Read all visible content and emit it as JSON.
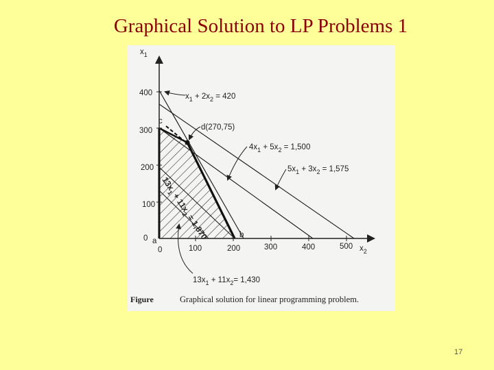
{
  "slide": {
    "title": "Graphical Solution to LP Problems 1",
    "page_number": "17"
  },
  "figure": {
    "caption_label": "Figure",
    "caption_text": "Graphical solution for linear programming problem.",
    "y_axis_var": "x",
    "y_axis_sub": "1",
    "x_axis_var": "x",
    "x_axis_sub": "2",
    "y_ticks": [
      "400",
      "300",
      "200",
      "100",
      "0"
    ],
    "x_ticks": [
      "0",
      "100",
      "200",
      "300",
      "400",
      "500"
    ],
    "points": {
      "a": "a",
      "b": "b",
      "c": "c",
      "d": "d(270,75)"
    },
    "constraints": [
      {
        "id": "c1",
        "lhs_a": "x",
        "lhs_a_sub": "1",
        "lhs_b": " + 2x",
        "lhs_b_sub": "2",
        "rhs": " = 420"
      },
      {
        "id": "c2",
        "lhs_a": "4x",
        "lhs_a_sub": "1",
        "lhs_b": " + 5x",
        "lhs_b_sub": "2",
        "rhs": " = 1,500"
      },
      {
        "id": "c3",
        "lhs_a": "5x",
        "lhs_a_sub": "1",
        "lhs_b": " + 3x",
        "lhs_b_sub": "2",
        "rhs": " = 1,575"
      }
    ],
    "objective_high": {
      "a": "13x",
      "a_sub": "1",
      "b": " + 11x",
      "b_sub": "2",
      "rhs": " = 1,870"
    },
    "objective_low": {
      "a": "13x",
      "a_sub": "1",
      "b": " + 11x",
      "b_sub": "2",
      "rhs": "= 1,430"
    }
  }
}
